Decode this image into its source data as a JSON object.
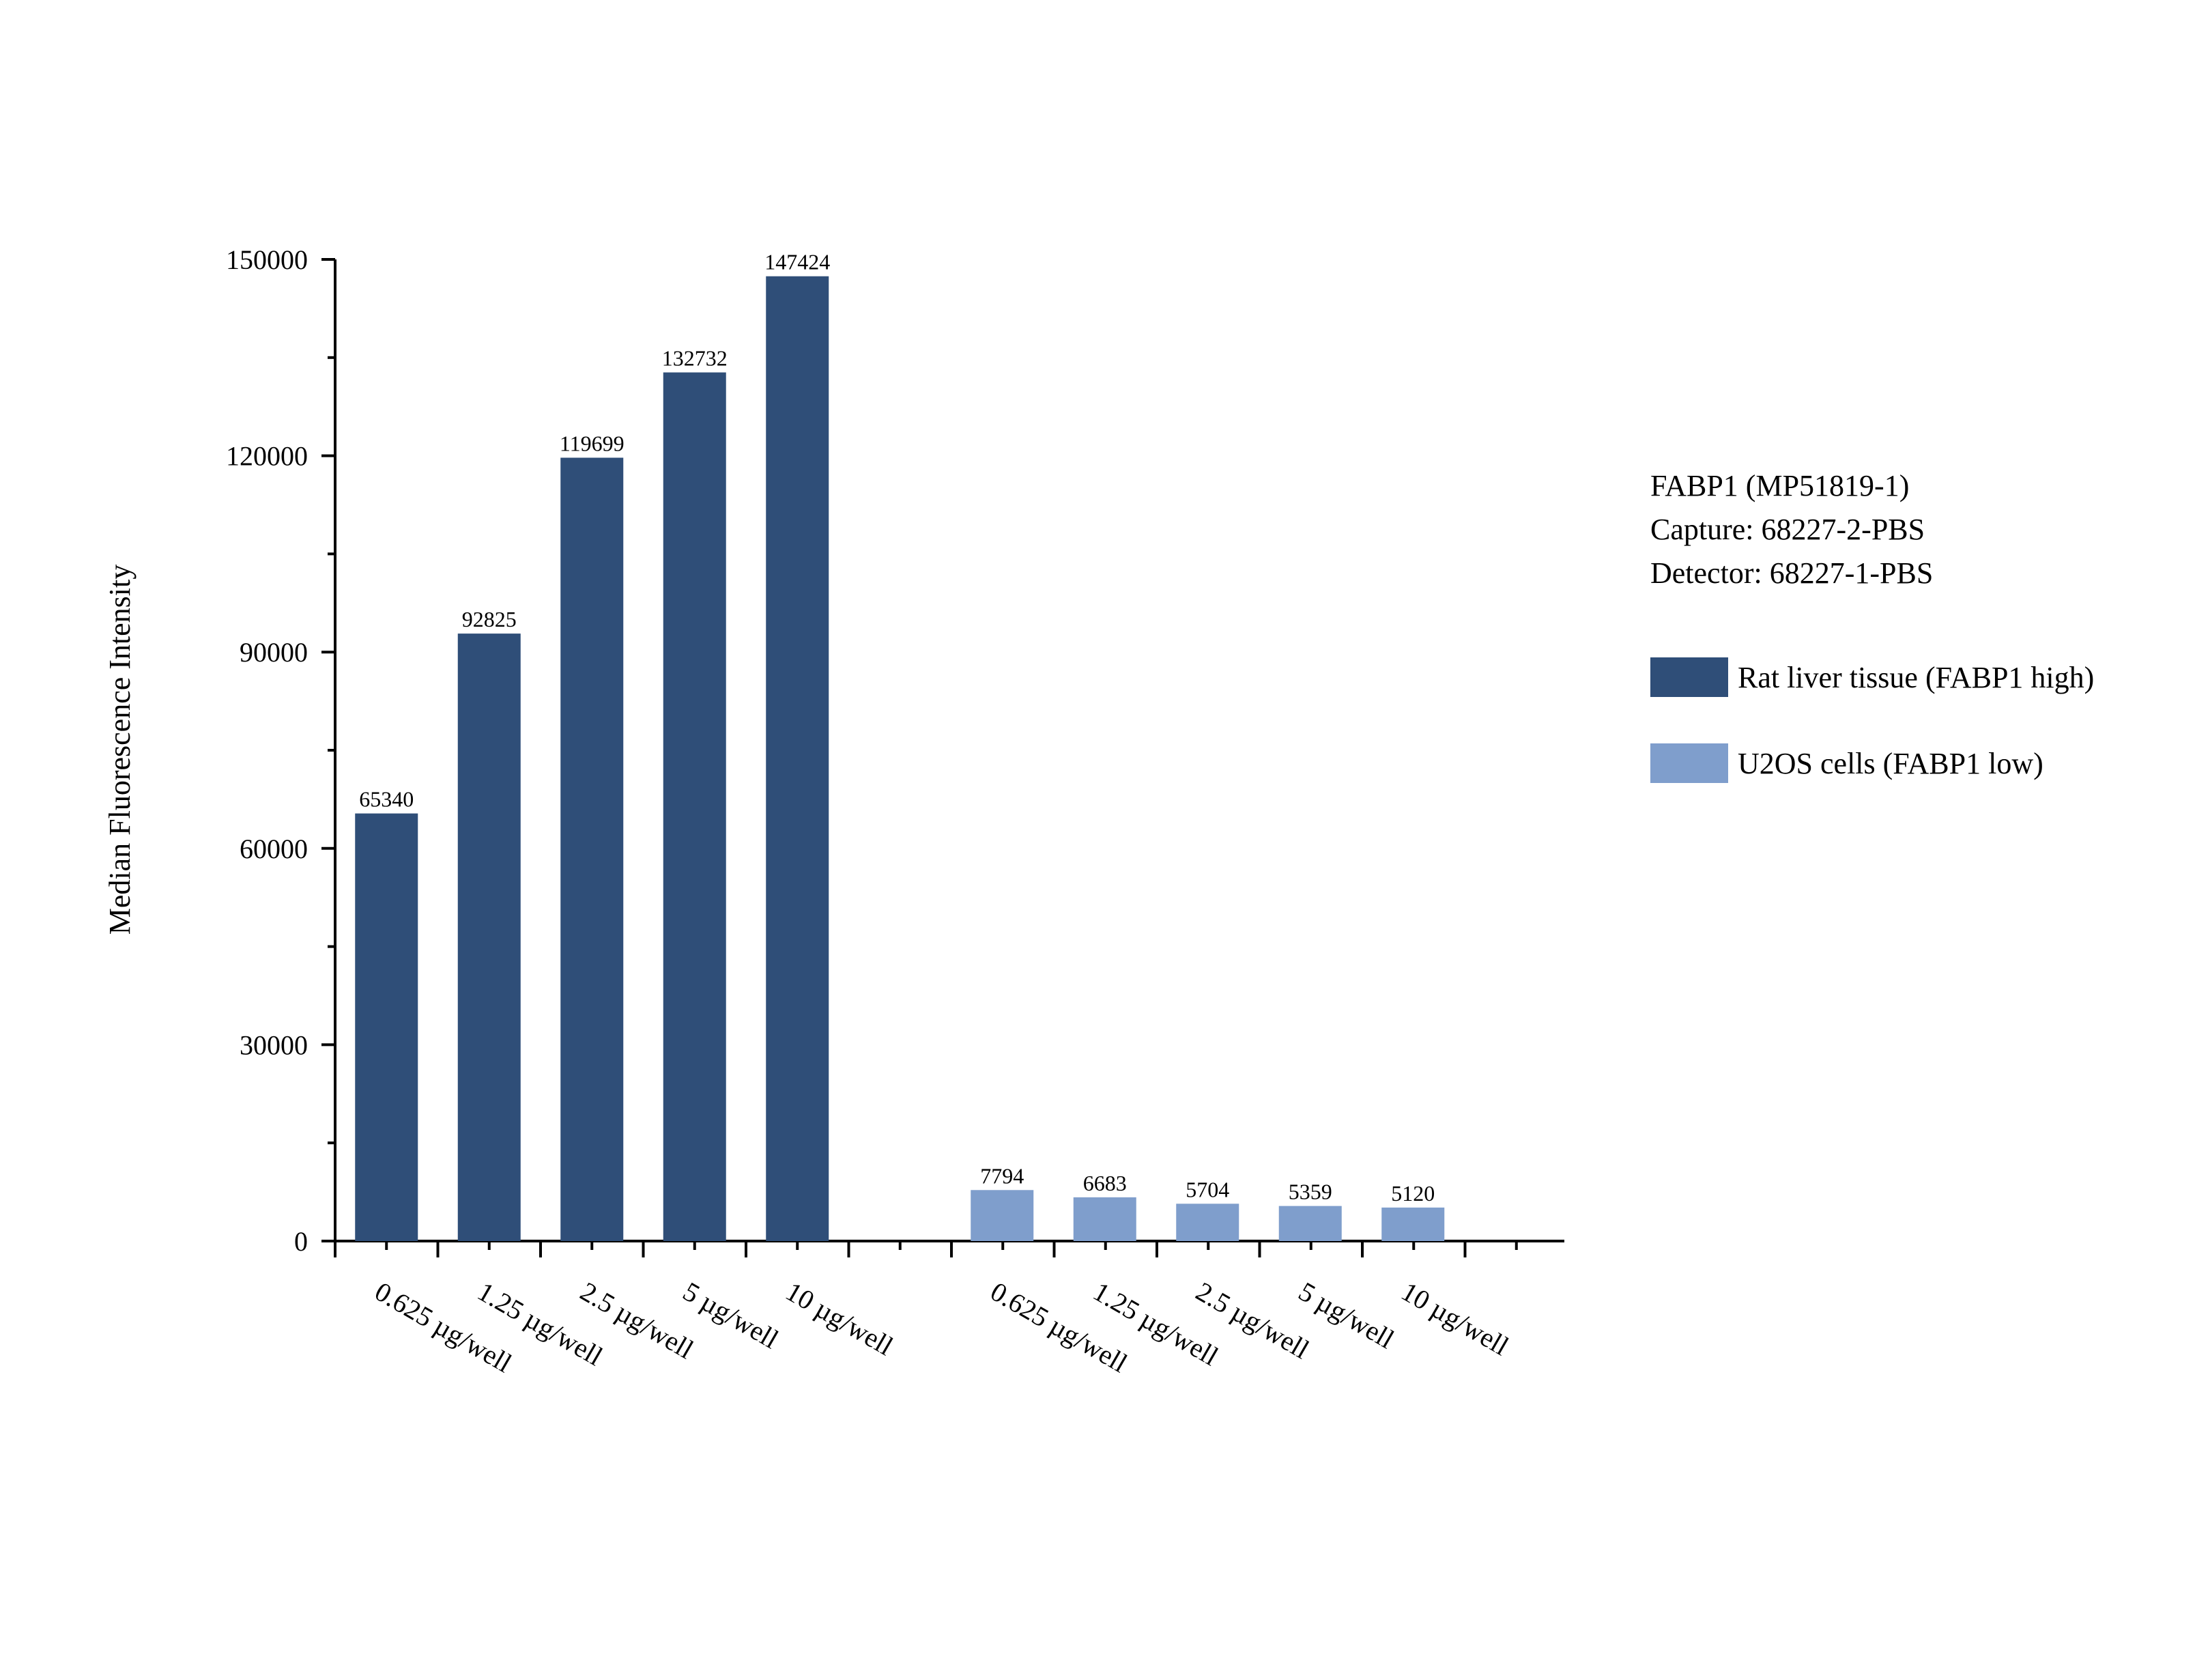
{
  "chart_data": {
    "type": "bar",
    "ylabel": "Median Fluorescence Intensity",
    "xlabel": "",
    "ylim": [
      0,
      150000
    ],
    "yticks": [
      0,
      30000,
      60000,
      90000,
      120000,
      150000
    ],
    "categories": [
      "0.625 µg/well",
      "1.25 µg/well",
      "2.5 µg/well",
      "5 µg/well",
      "10 µg/well"
    ],
    "series": [
      {
        "name": "Rat liver tissue (FABP1 high)",
        "color": "#2f4e78",
        "values": [
          65340,
          92825,
          119699,
          132732,
          147424
        ]
      },
      {
        "name": "U2OS cells (FABP1 low)",
        "color": "#7f9ecc",
        "values": [
          7794,
          6683,
          5704,
          5359,
          5120
        ]
      }
    ],
    "legend_position": "right",
    "grid": false
  },
  "legend": {
    "info_lines": [
      "FABP1 (MP51819-1)",
      "Capture: 68227-2-PBS",
      "Detector: 68227-1-PBS"
    ]
  }
}
